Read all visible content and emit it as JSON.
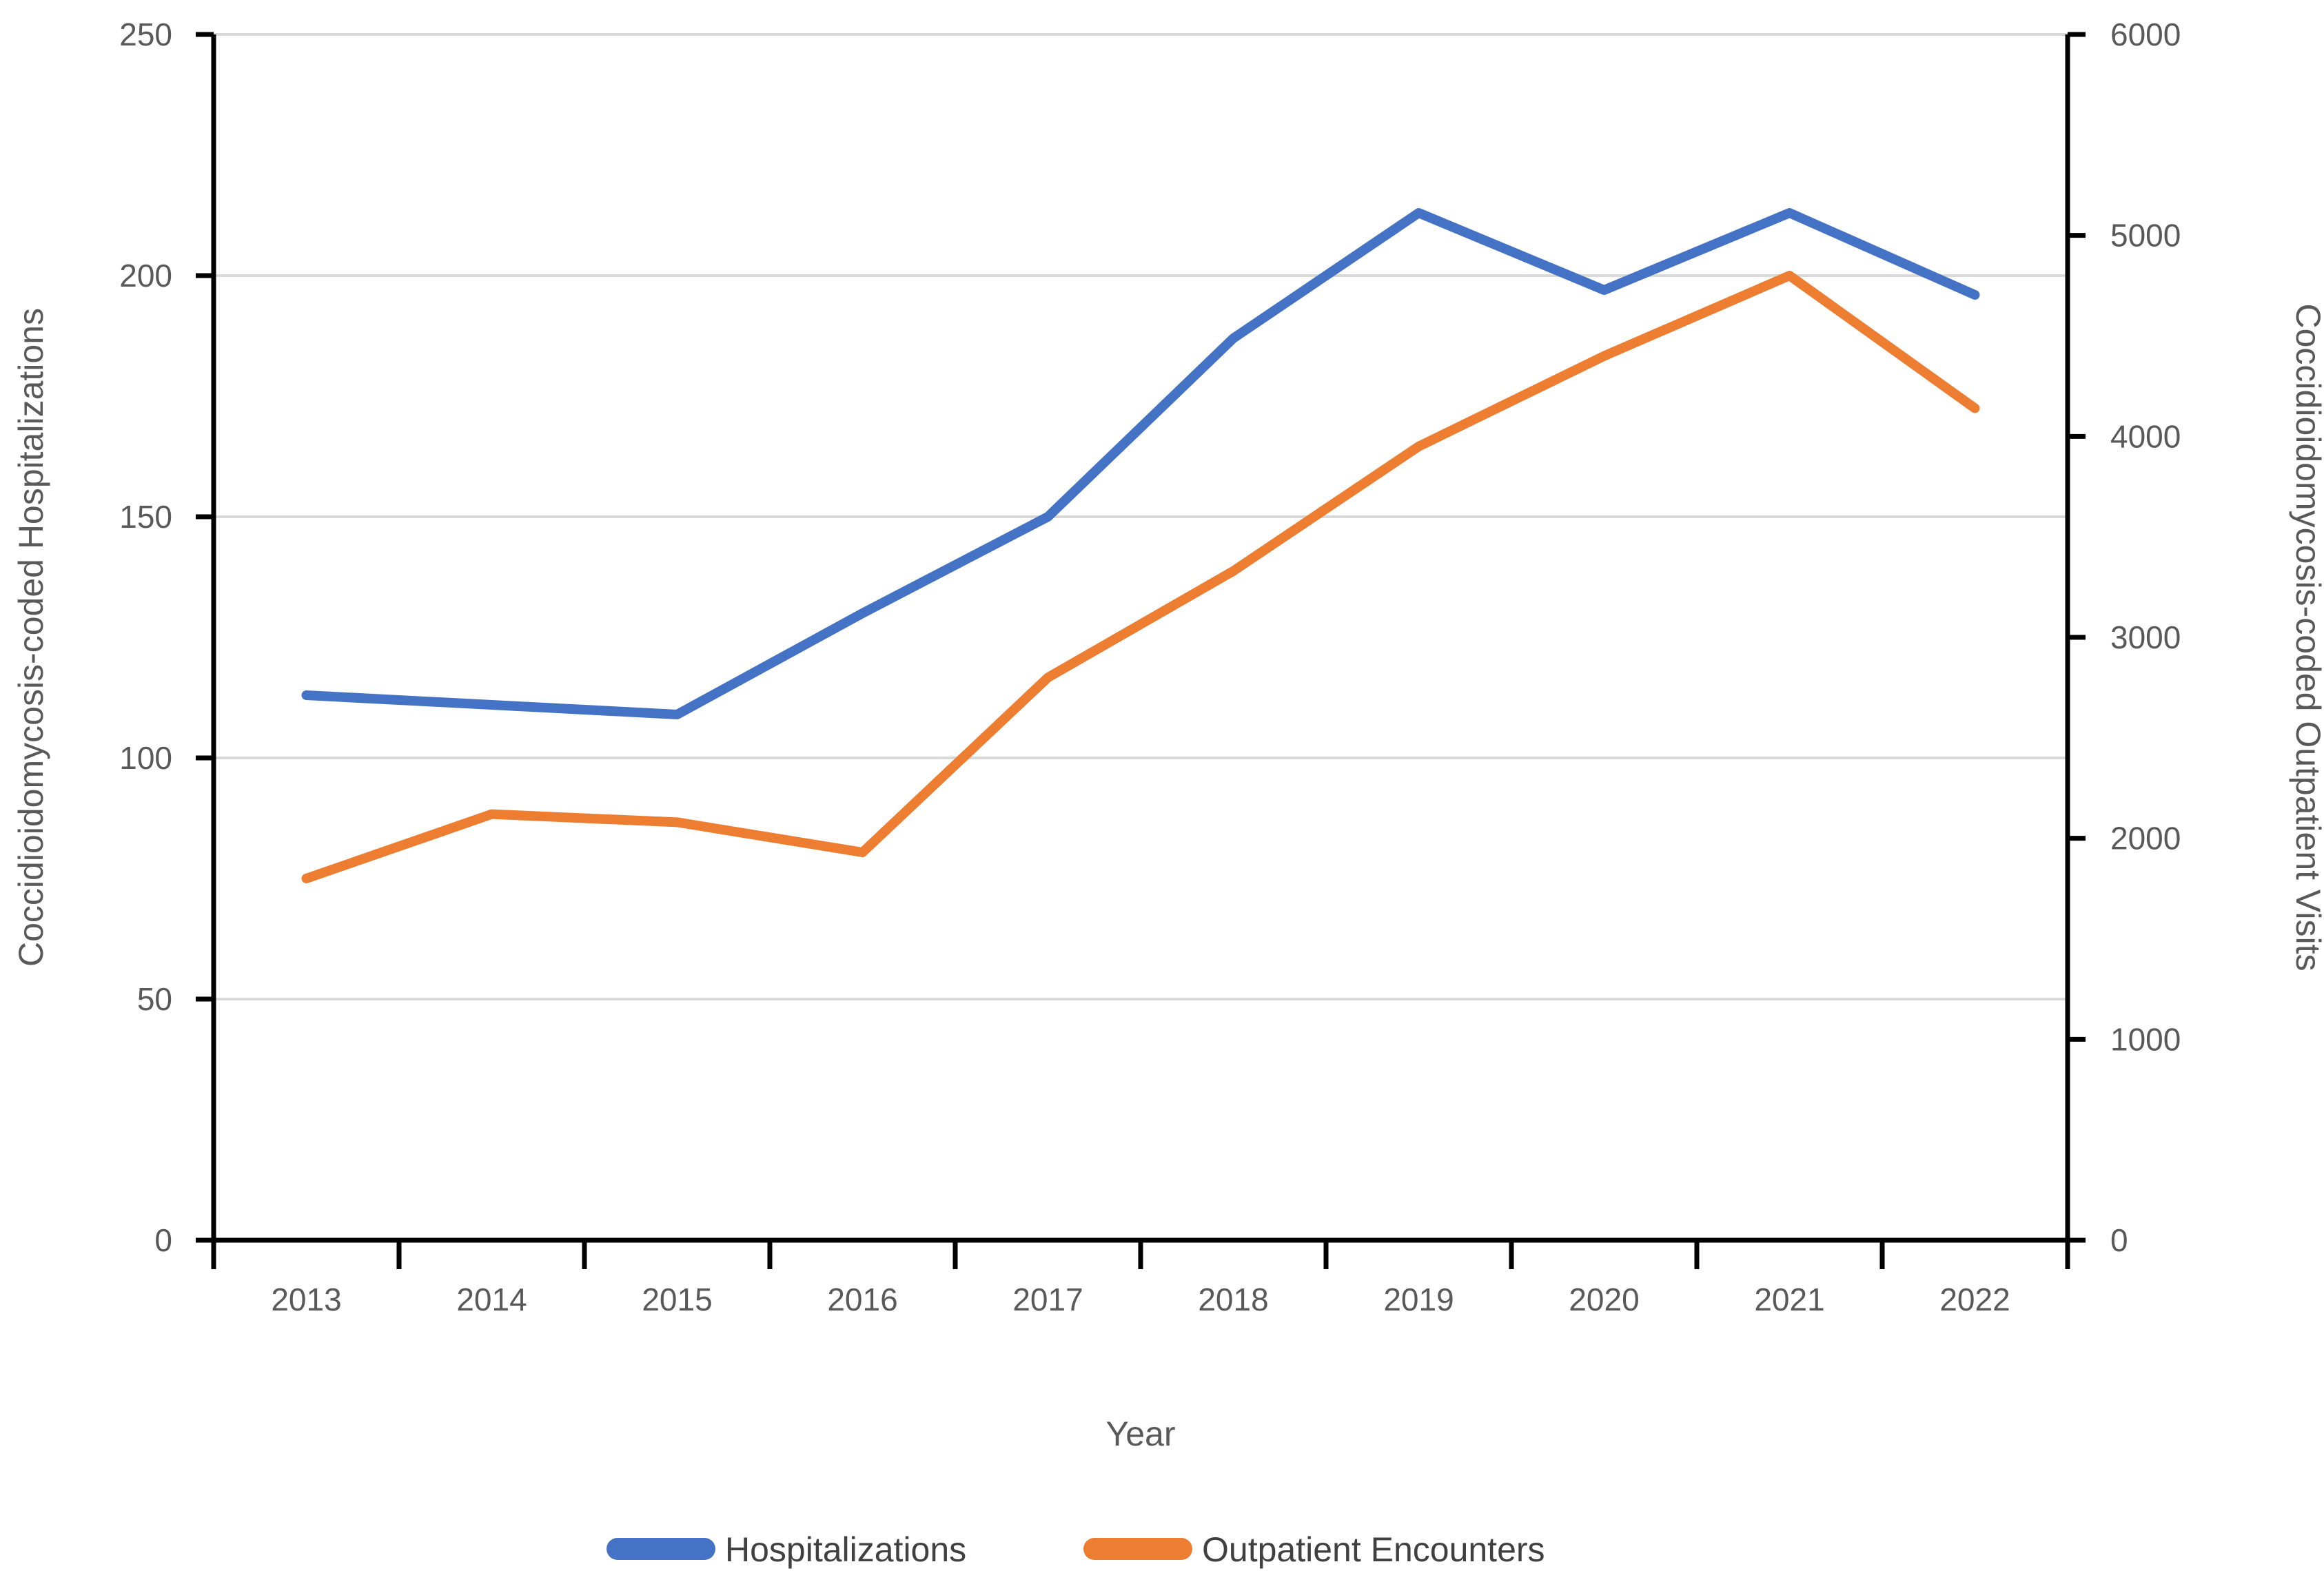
{
  "chart_data": {
    "type": "line",
    "title": "",
    "categories": [
      "2013",
      "2014",
      "2015",
      "2016",
      "2017",
      "2018",
      "2019",
      "2020",
      "2021",
      "2022"
    ],
    "series": [
      {
        "name": "Hospitalizations",
        "axis": "left",
        "color": "#4472C4",
        "values": [
          113,
          111,
          109,
          130,
          150,
          187,
          213,
          197,
          213,
          196
        ]
      },
      {
        "name": "Outpatient Encounters",
        "axis": "right",
        "color": "#ED7D31",
        "values": [
          1800,
          2120,
          2080,
          1930,
          2800,
          3330,
          3950,
          4400,
          4800,
          4140
        ]
      }
    ],
    "left_axis": {
      "label": "Coccidioidomycosis-coded Hospitalizations",
      "min": 0,
      "max": 250,
      "step": 50,
      "tick_labels": [
        "0",
        "50",
        "100",
        "150",
        "200",
        "250"
      ]
    },
    "right_axis": {
      "label": "Coccidioidomycosis-coded Outpatient Visits",
      "min": 0,
      "max": 6000,
      "step": 1000,
      "tick_labels": [
        "0",
        "1000",
        "2000",
        "3000",
        "4000",
        "5000",
        "6000"
      ]
    },
    "x_axis": {
      "label": "Year",
      "tick_labels": [
        "2013",
        "2014",
        "2015",
        "2016",
        "2017",
        "2018",
        "2019",
        "2020",
        "2021",
        "2022"
      ]
    },
    "legend": {
      "position": "bottom",
      "entries": [
        "Hospitalizations",
        "Outpatient Encounters"
      ]
    },
    "grid": true,
    "colors": {
      "hospitalizations": "#4472C4",
      "outpatient": "#ED7D31",
      "gridline": "#D9D9D9",
      "axis_line": "#000000",
      "text": "#595959"
    }
  }
}
